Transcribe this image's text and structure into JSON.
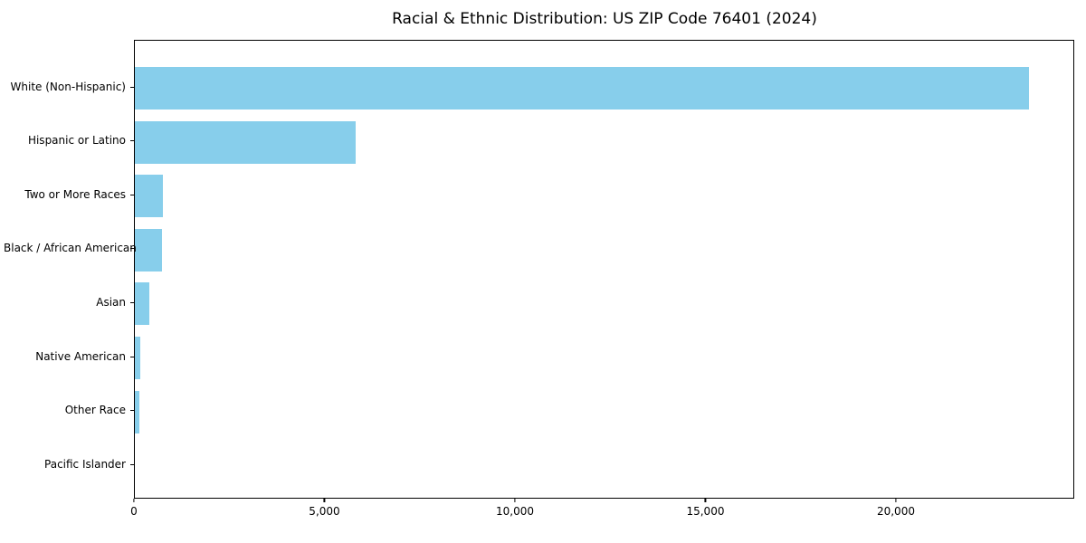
{
  "chart_data": {
    "type": "bar",
    "orientation": "horizontal",
    "title": "Racial & Ethnic Distribution: US ZIP Code 76401 (2024)",
    "categories": [
      "White (Non-Hispanic)",
      "Hispanic or Latino",
      "Two or More Races",
      "Black / African American",
      "Asian",
      "Native American",
      "Other Race",
      "Pacific Islander"
    ],
    "values": [
      23480,
      5800,
      745,
      720,
      385,
      150,
      120,
      0
    ],
    "bar_color": "#87CEEB",
    "background_color": "#ffffff",
    "axis_color": "#000000",
    "text_color": "#000000",
    "xlabel": "",
    "ylabel": "",
    "xlim": [
      0,
      24680
    ],
    "x_ticks": [
      {
        "value": 0,
        "label": "0"
      },
      {
        "value": 5000,
        "label": "5,000"
      },
      {
        "value": 10000,
        "label": "10,000"
      },
      {
        "value": 15000,
        "label": "15,000"
      },
      {
        "value": 20000,
        "label": "20,000"
      }
    ],
    "grid": false,
    "legend_position": "none"
  }
}
